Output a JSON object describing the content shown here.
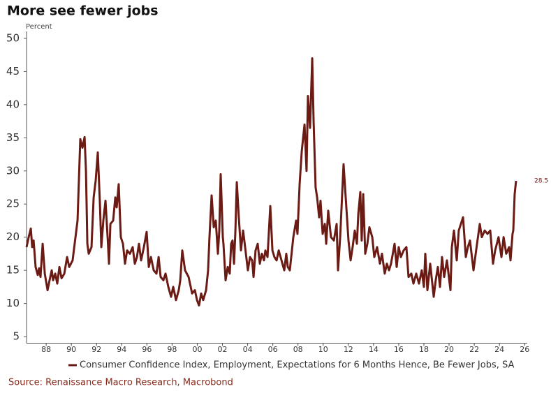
{
  "chart_data": {
    "type": "line",
    "title": "More see fewer jobs",
    "y_label": "Percent",
    "source": "Source: Renaissance Macro Research, Macrobond",
    "xlim": [
      1986.44,
      2026.21
    ],
    "ylim": [
      4,
      51
    ],
    "xticks": [
      {
        "value": 1988,
        "label": "88"
      },
      {
        "value": 1990,
        "label": "90"
      },
      {
        "value": 1992,
        "label": "92"
      },
      {
        "value": 1994,
        "label": "94"
      },
      {
        "value": 1996,
        "label": "96"
      },
      {
        "value": 1998,
        "label": "98"
      },
      {
        "value": 2000,
        "label": "00"
      },
      {
        "value": 2002,
        "label": "02"
      },
      {
        "value": 2004,
        "label": "04"
      },
      {
        "value": 2006,
        "label": "06"
      },
      {
        "value": 2008,
        "label": "08"
      },
      {
        "value": 2010,
        "label": "10"
      },
      {
        "value": 2012,
        "label": "12"
      },
      {
        "value": 2014,
        "label": "14"
      },
      {
        "value": 2016,
        "label": "16"
      },
      {
        "value": 2018,
        "label": "18"
      },
      {
        "value": 2020,
        "label": "20"
      },
      {
        "value": 2022,
        "label": "22"
      },
      {
        "value": 2024,
        "label": "24"
      },
      {
        "value": 2026,
        "label": "26"
      }
    ],
    "yticks": [
      5,
      10,
      15,
      20,
      25,
      30,
      35,
      40,
      45,
      50
    ],
    "grid": false,
    "x": [
      1986.44,
      1986.61,
      1986.78,
      1986.89,
      1987.0,
      1987.16,
      1987.33,
      1987.44,
      1987.55,
      1987.72,
      1987.89,
      1988.11,
      1988.27,
      1988.44,
      1988.55,
      1988.72,
      1988.88,
      1989.05,
      1989.22,
      1989.44,
      1989.66,
      1989.83,
      1990.1,
      1990.49,
      1990.71,
      1990.88,
      1991.05,
      1991.16,
      1991.27,
      1991.38,
      1991.6,
      1991.77,
      1991.93,
      1992.1,
      1992.27,
      1992.38,
      1992.54,
      1992.71,
      1992.88,
      1992.99,
      1993.1,
      1993.32,
      1993.49,
      1993.6,
      1993.76,
      1993.93,
      1994.1,
      1994.26,
      1994.43,
      1994.65,
      1994.87,
      1995.04,
      1995.21,
      1995.37,
      1995.54,
      1995.76,
      1995.98,
      1996.15,
      1996.32,
      1996.54,
      1996.76,
      1996.93,
      1997.09,
      1997.31,
      1997.48,
      1997.7,
      1997.92,
      1998.09,
      1998.31,
      1998.53,
      1998.65,
      1998.81,
      1999.03,
      1999.31,
      1999.59,
      1999.81,
      1999.98,
      2000.14,
      2000.31,
      2000.47,
      2000.7,
      2000.86,
      2000.97,
      2001.14,
      2001.31,
      2001.47,
      2001.64,
      2001.75,
      2001.86,
      2002.03,
      2002.08,
      2002.25,
      2002.42,
      2002.58,
      2002.69,
      2002.8,
      2002.92,
      2003.03,
      2003.14,
      2003.3,
      2003.47,
      2003.64,
      2003.8,
      2004.02,
      2004.19,
      2004.36,
      2004.47,
      2004.63,
      2004.8,
      2004.97,
      2005.13,
      2005.3,
      2005.41,
      2005.58,
      2005.8,
      2005.97,
      2006.13,
      2006.3,
      2006.47,
      2006.69,
      2006.91,
      2007.07,
      2007.19,
      2007.35,
      2007.63,
      2007.85,
      2007.96,
      2008.13,
      2008.3,
      2008.52,
      2008.68,
      2008.79,
      2008.96,
      2009.13,
      2009.24,
      2009.4,
      2009.52,
      2009.68,
      2009.79,
      2009.96,
      2010.13,
      2010.24,
      2010.4,
      2010.62,
      2010.85,
      2011.07,
      2011.18,
      2011.35,
      2011.62,
      2011.79,
      2012.01,
      2012.18,
      2012.34,
      2012.51,
      2012.68,
      2012.79,
      2012.95,
      2013.06,
      2013.18,
      2013.34,
      2013.51,
      2013.67,
      2013.9,
      2014.06,
      2014.28,
      2014.51,
      2014.67,
      2014.89,
      2015.06,
      2015.23,
      2015.39,
      2015.67,
      2015.84,
      2016.0,
      2016.17,
      2016.39,
      2016.61,
      2016.78,
      2017.0,
      2017.17,
      2017.39,
      2017.61,
      2017.83,
      2018.0,
      2018.11,
      2018.28,
      2018.5,
      2018.78,
      2018.94,
      2019.11,
      2019.28,
      2019.44,
      2019.61,
      2019.83,
      2020.11,
      2020.22,
      2020.39,
      2020.61,
      2020.77,
      2021.11,
      2021.33,
      2021.49,
      2021.66,
      2021.94,
      2022.22,
      2022.44,
      2022.6,
      2022.83,
      2023.05,
      2023.27,
      2023.49,
      2023.66,
      2023.93,
      2024.16,
      2024.33,
      2024.54,
      2024.77,
      2024.88,
      2025.04,
      2025.1,
      2025.21,
      2025.32
    ],
    "series": [
      {
        "name": "Consumer Confidence Index, Employment, Expectations for 6 Months Hence, Be Fewer Jobs, SA",
        "color": "#6b1a14",
        "values": [
          18.5,
          20,
          21.3,
          18.5,
          19.5,
          15.5,
          14.3,
          15.3,
          14,
          19,
          14.5,
          12,
          13.5,
          15,
          13.5,
          14.5,
          13,
          15.5,
          13.8,
          14.5,
          17,
          15.5,
          16.5,
          22.5,
          34.8,
          33.5,
          35.1,
          30,
          19,
          17.5,
          18.5,
          26,
          28.5,
          32.8,
          25,
          18.5,
          22.5,
          25.5,
          20,
          16,
          22,
          22.5,
          26,
          24.5,
          28,
          20,
          19,
          16,
          18,
          17.5,
          18.5,
          16,
          17,
          19,
          16.5,
          18.5,
          20.8,
          15.5,
          17,
          15,
          14.5,
          17,
          14,
          13.5,
          14.5,
          12.5,
          11,
          12.5,
          10.5,
          12,
          13.5,
          18,
          15,
          14,
          11.5,
          12,
          10.5,
          9.7,
          11.5,
          10.5,
          12,
          15,
          20,
          26.3,
          21.5,
          22.5,
          17.5,
          21,
          29.5,
          20,
          19,
          13.5,
          15.5,
          14.5,
          19,
          19.5,
          16,
          21,
          28.3,
          23,
          18,
          21,
          18.5,
          15,
          17,
          16.5,
          14,
          18,
          19,
          16,
          17.5,
          16.5,
          18,
          17,
          24.7,
          18,
          17,
          16.5,
          18,
          16.5,
          15,
          17.5,
          15.5,
          15,
          20,
          22.5,
          20.5,
          28,
          33,
          37,
          30,
          41.3,
          36.5,
          47,
          37.5,
          27.5,
          26,
          23,
          25.5,
          20.5,
          22,
          19,
          24,
          20,
          19.5,
          22,
          15,
          20,
          31,
          26,
          19.5,
          16.5,
          18.5,
          21,
          19,
          23.5,
          26.8,
          19.5,
          26.5,
          17.5,
          19,
          21.5,
          20,
          17,
          18.5,
          16,
          17.5,
          14.5,
          16,
          15,
          16,
          19,
          15.5,
          18.5,
          17,
          18,
          18.5,
          14,
          14.5,
          13,
          14.5,
          13,
          15,
          12.5,
          17.5,
          12,
          16,
          11,
          13.5,
          15.5,
          12.5,
          17,
          14,
          16.5,
          12,
          18.5,
          21,
          16.5,
          21,
          23,
          17,
          18.5,
          19.5,
          15,
          19,
          22,
          20,
          21,
          20.5,
          21,
          16,
          18,
          20,
          17,
          20,
          17.5,
          18.5,
          16.5,
          20.5,
          21,
          26.5,
          28.5
        ]
      }
    ]
  }
}
